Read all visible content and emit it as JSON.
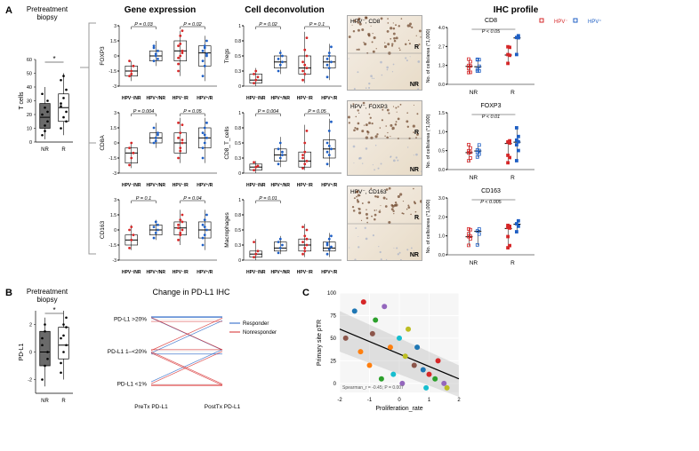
{
  "colors": {
    "red": "#d62728",
    "blue": "#1f5fc4",
    "darkgray": "#6a6a6a",
    "lightfill": "#ffffff",
    "axis": "#000000",
    "scatter_colors": [
      "#1f77b4",
      "#d62728",
      "#2ca02c",
      "#9467bd",
      "#ff7f0e",
      "#17becf",
      "#bcbd22",
      "#8c564b"
    ]
  },
  "panelA": {
    "label": "A",
    "title": "Pretreatment biopsy",
    "headers": {
      "gene": "Gene expression",
      "cell": "Cell deconvolution",
      "ihc": "IHC profile"
    },
    "tcell_box": {
      "type": "boxplot",
      "ylabel": "T cells",
      "ylim": [
        0,
        60
      ],
      "yticks": [
        0,
        10,
        20,
        30,
        40,
        50,
        60
      ],
      "categories": [
        "NR",
        "R"
      ],
      "boxes": [
        {
          "q1": 10,
          "med": 18,
          "q3": 28,
          "whisker_lo": 2,
          "whisker_hi": 40,
          "fill": "#6a6a6a",
          "points": [
            5,
            12,
            15,
            20,
            25,
            30,
            35,
            8,
            22
          ]
        },
        {
          "q1": 15,
          "med": 25,
          "q3": 35,
          "whisker_lo": 5,
          "whisker_hi": 50,
          "fill": "#ffffff",
          "points": [
            10,
            18,
            22,
            28,
            32,
            38,
            45,
            48,
            15,
            26
          ]
        }
      ],
      "sig": "*"
    },
    "gene_charts": [
      {
        "ylabel": "FOXP3",
        "p_left": "P = 0.03",
        "p_right": "P = 0.02",
        "ylim": [
          -3,
          3
        ],
        "data": [
          {
            "med": -1.5,
            "q1": -2,
            "q3": -1,
            "lo": -2.5,
            "hi": -0.5,
            "color": "red",
            "pts": [
              -2,
              -1.5,
              -1,
              -0.5,
              -1.8
            ]
          },
          {
            "med": 0,
            "q1": -0.5,
            "q3": 0.5,
            "lo": -1,
            "hi": 1.5,
            "color": "blue",
            "pts": [
              -0.5,
              0,
              0.5,
              1,
              0.2,
              -0.3,
              0.8
            ]
          },
          {
            "med": 0.5,
            "q1": -0.5,
            "q3": 1.5,
            "lo": -2,
            "hi": 2.5,
            "color": "red",
            "pts": [
              -1.5,
              0,
              0.5,
              1,
              2,
              2.5,
              -0.8,
              1.2,
              0.3,
              -0.2
            ]
          },
          {
            "med": 0.3,
            "q1": -1,
            "q3": 1,
            "lo": -2.5,
            "hi": 2,
            "color": "blue",
            "pts": [
              -2,
              -1,
              0,
              0.5,
              1,
              1.5,
              -0.5,
              0.8,
              0.2
            ]
          }
        ]
      },
      {
        "ylabel": "CD8A",
        "p_left": "P = 0.004",
        "p_right": "P = 0.05",
        "ylim": [
          -3,
          3
        ],
        "data": [
          {
            "med": -1,
            "q1": -2,
            "q3": -0.5,
            "lo": -2.5,
            "hi": 0,
            "color": "red",
            "pts": [
              -2.2,
              -1.5,
              -1,
              -0.5,
              0
            ]
          },
          {
            "med": 0.5,
            "q1": 0,
            "q3": 1,
            "lo": -0.5,
            "hi": 2,
            "color": "blue",
            "pts": [
              0,
              0.5,
              1,
              1.5,
              0.2,
              0.8
            ]
          },
          {
            "med": 0,
            "q1": -1,
            "q3": 1,
            "lo": -2,
            "hi": 2.5,
            "color": "red",
            "pts": [
              -1.5,
              -0.5,
              0,
              0.5,
              1,
              1.8,
              2,
              -0.8,
              0.3
            ]
          },
          {
            "med": 0.5,
            "q1": -0.5,
            "q3": 1.5,
            "lo": -2,
            "hi": 2.5,
            "color": "blue",
            "pts": [
              -1.5,
              0,
              0.5,
              1,
              1.5,
              2,
              -0.5,
              0.8
            ]
          }
        ]
      },
      {
        "ylabel": "CD163",
        "p_left": "P = 0.1",
        "p_right": "P = 0.04",
        "ylim": [
          -3,
          3
        ],
        "data": [
          {
            "med": -1,
            "q1": -1.5,
            "q3": -0.5,
            "lo": -2,
            "hi": 0.5,
            "color": "red",
            "pts": [
              -1.8,
              -1,
              -0.5,
              0,
              0.3
            ]
          },
          {
            "med": 0,
            "q1": -0.5,
            "q3": 0.5,
            "lo": -1,
            "hi": 1,
            "color": "blue",
            "pts": [
              -0.8,
              -0.3,
              0,
              0.3,
              0.8,
              0.5
            ]
          },
          {
            "med": 0.2,
            "q1": -0.5,
            "q3": 0.8,
            "lo": -1.5,
            "hi": 2,
            "color": "red",
            "pts": [
              -1,
              -0.3,
              0,
              0.5,
              1,
              1.5,
              0.2,
              -0.5,
              0.8
            ]
          },
          {
            "med": 0,
            "q1": -0.8,
            "q3": 0.8,
            "lo": -2,
            "hi": 2,
            "color": "blue",
            "pts": [
              -1.5,
              -0.5,
              0,
              0.5,
              1,
              1.5,
              -0.8,
              0.3
            ]
          }
        ]
      }
    ],
    "cell_charts": [
      {
        "ylabel": "Tregs",
        "p_left": "P = 0.02",
        "p_right": "P = 0.1",
        "ylim": [
          0,
          1
        ],
        "data": [
          {
            "med": 0.1,
            "q1": 0.05,
            "q3": 0.2,
            "lo": 0,
            "hi": 0.3,
            "color": "red",
            "pts": [
              0.05,
              0.1,
              0.15,
              0.2,
              0.25
            ]
          },
          {
            "med": 0.4,
            "q1": 0.3,
            "q3": 0.5,
            "lo": 0.2,
            "hi": 0.6,
            "color": "blue",
            "pts": [
              0.25,
              0.35,
              0.4,
              0.45,
              0.55,
              0.5
            ]
          },
          {
            "med": 0.3,
            "q1": 0.2,
            "q3": 0.5,
            "lo": 0.05,
            "hi": 0.9,
            "color": "red",
            "pts": [
              0.1,
              0.2,
              0.3,
              0.4,
              0.6,
              0.8,
              0.25,
              0.35,
              0.5
            ]
          },
          {
            "med": 0.4,
            "q1": 0.3,
            "q3": 0.5,
            "lo": 0.1,
            "hi": 0.7,
            "color": "blue",
            "pts": [
              0.15,
              0.3,
              0.4,
              0.45,
              0.55,
              0.65,
              0.35,
              0.5
            ]
          }
        ]
      },
      {
        "ylabel": "CD8_T_cells",
        "p_left": "P = 0.004",
        "p_right": "P = 0.05",
        "ylim": [
          0,
          1
        ],
        "data": [
          {
            "med": 0.1,
            "q1": 0.05,
            "q3": 0.15,
            "lo": 0,
            "hi": 0.2,
            "color": "red",
            "pts": [
              0.05,
              0.1,
              0.12,
              0.18
            ]
          },
          {
            "med": 0.3,
            "q1": 0.2,
            "q3": 0.4,
            "lo": 0.1,
            "hi": 0.6,
            "color": "blue",
            "pts": [
              0.15,
              0.25,
              0.3,
              0.4,
              0.5,
              0.35
            ]
          },
          {
            "med": 0.2,
            "q1": 0.1,
            "q3": 0.35,
            "lo": 0.05,
            "hi": 0.8,
            "color": "red",
            "pts": [
              0.08,
              0.15,
              0.2,
              0.3,
              0.5,
              0.7,
              0.25,
              0.35
            ]
          },
          {
            "med": 0.4,
            "q1": 0.25,
            "q3": 0.55,
            "lo": 0.1,
            "hi": 0.9,
            "color": "blue",
            "pts": [
              0.15,
              0.3,
              0.4,
              0.5,
              0.7,
              0.85,
              0.35,
              0.45
            ]
          }
        ]
      },
      {
        "ylabel": "Macrophages",
        "p_left": "P = 0.01",
        "p_right": "",
        "ylim": [
          0,
          1
        ],
        "data": [
          {
            "med": 0.1,
            "q1": 0.05,
            "q3": 0.15,
            "lo": 0,
            "hi": 0.35,
            "color": "red",
            "pts": [
              0.05,
              0.1,
              0.15,
              0.3
            ]
          },
          {
            "med": 0.2,
            "q1": 0.15,
            "q3": 0.3,
            "lo": 0.1,
            "hi": 0.4,
            "color": "blue",
            "pts": [
              0.12,
              0.2,
              0.25,
              0.3,
              0.35
            ]
          },
          {
            "med": 0.25,
            "q1": 0.15,
            "q3": 0.35,
            "lo": 0.05,
            "hi": 0.6,
            "color": "red",
            "pts": [
              0.1,
              0.2,
              0.25,
              0.3,
              0.4,
              0.5,
              0.55,
              0.15,
              0.35
            ]
          },
          {
            "med": 0.2,
            "q1": 0.15,
            "q3": 0.3,
            "lo": 0.05,
            "hi": 0.45,
            "color": "blue",
            "pts": [
              0.1,
              0.18,
              0.22,
              0.28,
              0.35,
              0.4,
              0.25
            ]
          }
        ]
      }
    ],
    "gene_xcats": [
      "HPV⁻/NR",
      "HPV⁺/NR",
      "HPV⁻/R",
      "HPV⁺/R"
    ],
    "ihc_panels": [
      {
        "title": "HPV⁻, CD8",
        "marker": "CD8",
        "p": "P < 0.05",
        "ylim": [
          0,
          4
        ],
        "legend": [
          "HPV⁻",
          "HPV⁺"
        ]
      },
      {
        "title": "HPV⁻, FOXP3",
        "marker": "FOXP3",
        "p": "P < 0.01",
        "ylim": [
          0,
          1.5
        ]
      },
      {
        "title": "HPV⁻, CD163",
        "marker": "CD163",
        "p": "P < 0.005",
        "ylim": [
          0,
          3
        ]
      }
    ],
    "ihc_ylabel": "No. of cells/area (*1,000)",
    "ihc_xcats": [
      "NR",
      "R"
    ]
  },
  "panelB": {
    "label": "B",
    "title": "Pretreatment biopsy",
    "pdl1_box": {
      "ylabel": "PD-L1",
      "ylim": [
        -3,
        3
      ],
      "yticks": [
        -2,
        0,
        2
      ],
      "boxes": [
        {
          "q1": -1,
          "med": 0,
          "q3": 1.5,
          "lo": -2.5,
          "hi": 2.5,
          "fill": "#6a6a6a",
          "pts": [
            -2,
            -1,
            0,
            1,
            2,
            -0.5,
            0.5,
            1.5
          ]
        },
        {
          "q1": -0.5,
          "med": 0.5,
          "q3": 1.8,
          "lo": -2,
          "hi": 3,
          "fill": "#ffffff",
          "pts": [
            -1.5,
            0,
            0.5,
            1,
            2,
            2.5,
            -0.8,
            1.2,
            1.8
          ]
        }
      ],
      "cats": [
        "NR",
        "R"
      ],
      "sig": "*"
    },
    "slope": {
      "title": "Change in PD-L1 IHC",
      "ylevels": [
        "PD-L1 >20%",
        "PD-L1 1–<20%",
        "PD-L1 <1%"
      ],
      "xcats": [
        "PreTx PD-L1",
        "PostTx PD-L1"
      ],
      "legend": [
        "Responder",
        "Nonresponder"
      ],
      "lines": [
        {
          "from": 2,
          "to": 2,
          "c": "blue"
        },
        {
          "from": 2,
          "to": 2,
          "c": "blue"
        },
        {
          "from": 1,
          "to": 2,
          "c": "blue"
        },
        {
          "from": 2,
          "to": 1,
          "c": "blue"
        },
        {
          "from": 1,
          "to": 1,
          "c": "blue"
        },
        {
          "from": 0,
          "to": 1,
          "c": "blue"
        },
        {
          "from": 2,
          "to": 1,
          "c": "red"
        },
        {
          "from": 1,
          "to": 1,
          "c": "red"
        },
        {
          "from": 1,
          "to": 0,
          "c": "red"
        },
        {
          "from": 0,
          "to": 0,
          "c": "red"
        },
        {
          "from": 0,
          "to": 1,
          "c": "red"
        },
        {
          "from": 1,
          "to": 2,
          "c": "red"
        },
        {
          "from": 0,
          "to": 0,
          "c": "red"
        },
        {
          "from": 2,
          "to": 2,
          "c": "red"
        },
        {
          "from": 1,
          "to": 0,
          "c": "red"
        }
      ]
    }
  },
  "panelC": {
    "label": "C",
    "scatter": {
      "xlabel": "Proliferation_rate",
      "ylabel": "Primary site pTR",
      "xlim": [
        -2,
        2
      ],
      "ylim": [
        -10,
        100
      ],
      "xticks": [
        -2,
        -1,
        0,
        1,
        2
      ],
      "yticks": [
        0,
        25,
        50,
        75,
        100
      ],
      "stat": "Spearman_r = -0.45; P = 0.007",
      "fit": {
        "x1": -2,
        "y1": 60,
        "x2": 2,
        "y2": 5
      },
      "points": [
        {
          "x": -1.5,
          "y": 80,
          "c": 0
        },
        {
          "x": -1.2,
          "y": 90,
          "c": 1
        },
        {
          "x": -0.8,
          "y": 70,
          "c": 2
        },
        {
          "x": -0.5,
          "y": 85,
          "c": 3
        },
        {
          "x": -0.3,
          "y": 40,
          "c": 4
        },
        {
          "x": 0,
          "y": 50,
          "c": 5
        },
        {
          "x": 0.2,
          "y": 30,
          "c": 6
        },
        {
          "x": 0.5,
          "y": 20,
          "c": 7
        },
        {
          "x": 0.8,
          "y": 15,
          "c": 0
        },
        {
          "x": 1,
          "y": 10,
          "c": 1
        },
        {
          "x": 1.2,
          "y": 5,
          "c": 2
        },
        {
          "x": 1.5,
          "y": 0,
          "c": 3
        },
        {
          "x": -1,
          "y": 20,
          "c": 4
        },
        {
          "x": -0.2,
          "y": 10,
          "c": 5
        },
        {
          "x": 0.3,
          "y": 60,
          "c": 6
        },
        {
          "x": -1.8,
          "y": 50,
          "c": 7
        },
        {
          "x": 0.6,
          "y": 40,
          "c": 0
        },
        {
          "x": 1.3,
          "y": 25,
          "c": 1
        },
        {
          "x": -0.6,
          "y": 5,
          "c": 2
        },
        {
          "x": 0.1,
          "y": 0,
          "c": 3
        },
        {
          "x": -1.3,
          "y": 35,
          "c": 4
        },
        {
          "x": 0.9,
          "y": -5,
          "c": 5
        },
        {
          "x": 1.6,
          "y": -5,
          "c": 6
        },
        {
          "x": -0.9,
          "y": 55,
          "c": 7
        }
      ]
    }
  }
}
